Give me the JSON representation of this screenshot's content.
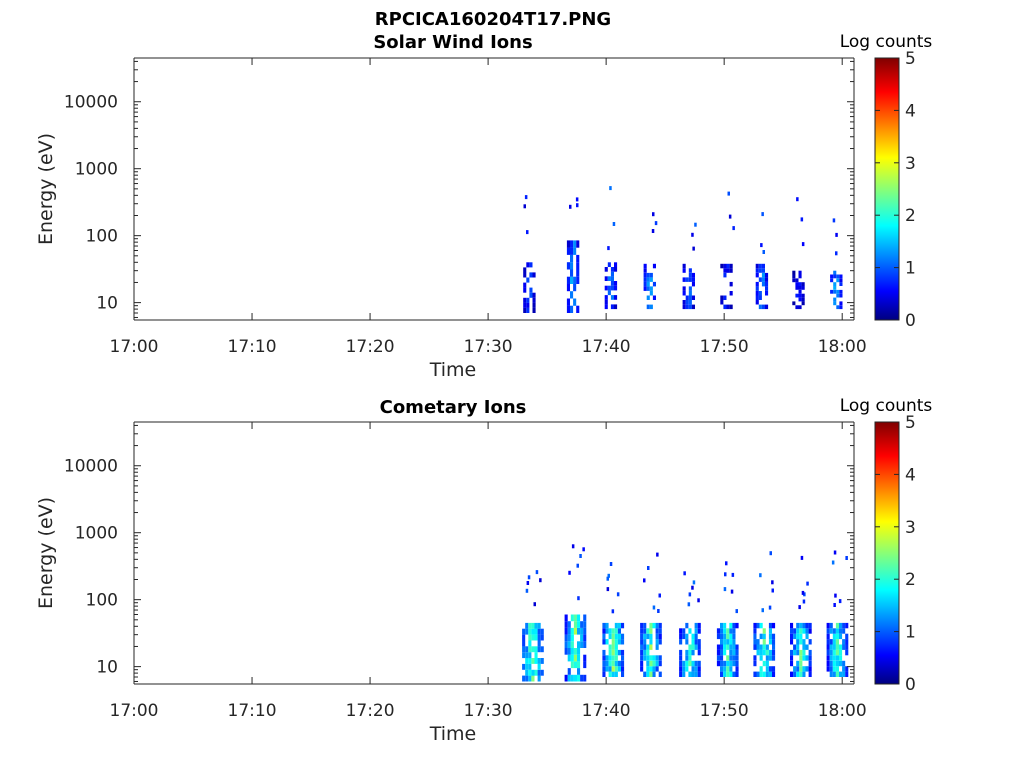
{
  "figure_title": "RPCICA160204T17.PNG",
  "chart_data": [
    {
      "type": "heatmap",
      "title": "Solar Wind Ions",
      "xlabel": "Time",
      "ylabel": "Energy (eV)",
      "x_ticks": [
        "17:00",
        "17:10",
        "17:20",
        "17:30",
        "17:40",
        "17:50",
        "18:00"
      ],
      "xlim_minutes": [
        0,
        61
      ],
      "y_scale": "log",
      "y_ticks": [
        10,
        100,
        1000,
        10000
      ],
      "ylim": [
        5.5,
        45000
      ],
      "colorbar": {
        "label": "Log counts",
        "ticks": [
          0,
          1,
          2,
          3,
          4,
          5
        ],
        "range": [
          0,
          5
        ],
        "colormap": "jet"
      },
      "missing_before_minute": 32.5,
      "bursts": [
        {
          "minute": 33.5,
          "energy_range_ev": [
            7,
            40
          ],
          "peak_log_counts": 1.3
        },
        {
          "minute": 37.2,
          "energy_range_ev": [
            7,
            85
          ],
          "peak_log_counts": 1.8
        },
        {
          "minute": 40.4,
          "energy_range_ev": [
            8,
            40
          ],
          "peak_log_counts": 1.6
        },
        {
          "minute": 43.7,
          "energy_range_ev": [
            8,
            38
          ],
          "peak_log_counts": 1.9
        },
        {
          "minute": 47.0,
          "energy_range_ev": [
            8,
            38
          ],
          "peak_log_counts": 1.5
        },
        {
          "minute": 50.2,
          "energy_range_ev": [
            8,
            38
          ],
          "peak_log_counts": 1.2
        },
        {
          "minute": 53.2,
          "energy_range_ev": [
            8,
            38
          ],
          "peak_log_counts": 1.8
        },
        {
          "minute": 56.3,
          "energy_range_ev": [
            8,
            30
          ],
          "peak_log_counts": 1.0
        },
        {
          "minute": 59.5,
          "energy_range_ev": [
            8,
            30
          ],
          "peak_log_counts": 1.8
        }
      ]
    },
    {
      "type": "heatmap",
      "title": "Cometary Ions",
      "xlabel": "Time",
      "ylabel": "Energy (eV)",
      "x_ticks": [
        "17:00",
        "17:10",
        "17:20",
        "17:30",
        "17:40",
        "17:50",
        "18:00"
      ],
      "xlim_minutes": [
        0,
        61
      ],
      "y_scale": "log",
      "y_ticks": [
        10,
        100,
        1000,
        10000
      ],
      "ylim": [
        5.5,
        45000
      ],
      "colorbar": {
        "label": "Log counts",
        "ticks": [
          0,
          1,
          2,
          3,
          4,
          5
        ],
        "range": [
          0,
          5
        ],
        "colormap": "jet"
      },
      "missing_before_minute": 32.5,
      "bursts": [
        {
          "minute": 33.8,
          "energy_range_ev": [
            6,
            45
          ],
          "peak_log_counts": 3.0
        },
        {
          "minute": 37.4,
          "energy_range_ev": [
            6,
            60
          ],
          "peak_log_counts": 2.9
        },
        {
          "minute": 40.6,
          "energy_range_ev": [
            7,
            45
          ],
          "peak_log_counts": 3.0
        },
        {
          "minute": 43.8,
          "energy_range_ev": [
            7,
            45
          ],
          "peak_log_counts": 2.8
        },
        {
          "minute": 47.1,
          "energy_range_ev": [
            7,
            45
          ],
          "peak_log_counts": 2.6
        },
        {
          "minute": 50.3,
          "energy_range_ev": [
            7,
            45
          ],
          "peak_log_counts": 2.6
        },
        {
          "minute": 53.4,
          "energy_range_ev": [
            7,
            45
          ],
          "peak_log_counts": 2.8
        },
        {
          "minute": 56.5,
          "energy_range_ev": [
            7,
            45
          ],
          "peak_log_counts": 2.6
        },
        {
          "minute": 59.6,
          "energy_range_ev": [
            7,
            45
          ],
          "peak_log_counts": 2.6
        }
      ]
    }
  ]
}
